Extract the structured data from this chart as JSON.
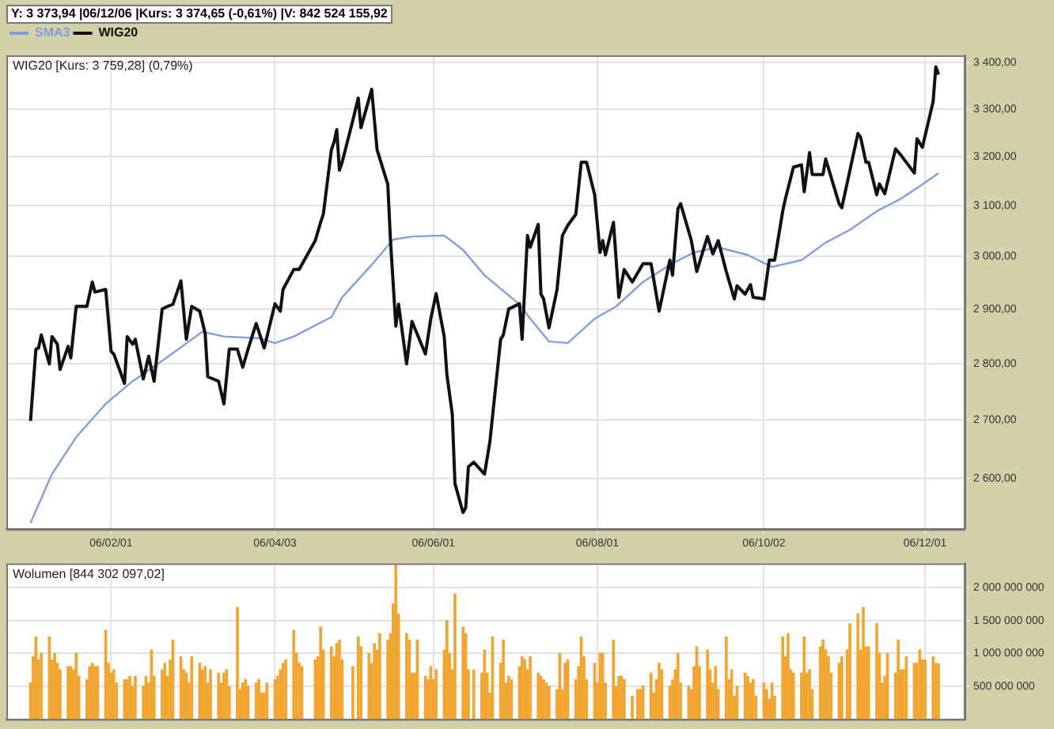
{
  "chart_data": [
    {
      "type": "line",
      "title": "WIG20 [Kurs: 3 759,28] (0,79%)",
      "annotations": [
        "Y: 3 373,94 |06/12/06 |Kurs: 3 374,65 (-0,61%) |V: 842 524 155,92"
      ],
      "legend": "top left",
      "grid": true,
      "log": "y",
      "xlim": [
        "2005-12-24",
        "2006-12-16"
      ],
      "xticks": [
        {
          "value": "2006-02-01",
          "label": "06/02/01"
        },
        {
          "value": "2006-04-03",
          "label": "06/04/03"
        },
        {
          "value": "2006-06-01",
          "label": "06/06/01"
        },
        {
          "value": "2006-08-01",
          "label": "06/08/01"
        },
        {
          "value": "2006-10-02",
          "label": "06/10/02"
        },
        {
          "value": "2006-12-01",
          "label": "06/12/01"
        }
      ],
      "ylim": [
        2516,
        3416
      ],
      "yticks": [
        {
          "value": 2600,
          "label": "2 600,00"
        },
        {
          "value": 2700,
          "label": "2 700,00"
        },
        {
          "value": 2800,
          "label": "2 800,00"
        },
        {
          "value": 2900,
          "label": "2 900,00"
        },
        {
          "value": 3000,
          "label": "3 000,00"
        },
        {
          "value": 3100,
          "label": "3 100,00"
        },
        {
          "value": 3200,
          "label": "3 200,00"
        },
        {
          "value": 3300,
          "label": "3 300,00"
        },
        {
          "value": 3400,
          "label": "3 400,00"
        }
      ],
      "series": [
        {
          "name": "SMA3",
          "color": "#7f9fdf",
          "x": [
            "2006-01-02",
            "2006-01-10",
            "2006-01-19",
            "2006-01-30",
            "2006-02-09",
            "2006-02-21",
            "2006-03-07",
            "2006-03-15",
            "2006-03-28",
            "2006-04-03",
            "2006-04-10",
            "2006-04-24",
            "2006-04-28",
            "2006-05-09",
            "2006-05-17",
            "2006-05-24",
            "2006-06-05",
            "2006-06-12",
            "2006-06-20",
            "2006-07-03",
            "2006-07-07",
            "2006-07-14",
            "2006-07-21",
            "2006-07-31",
            "2006-08-08",
            "2006-08-18",
            "2006-08-28",
            "2006-09-06",
            "2006-09-15",
            "2006-09-26",
            "2006-10-05",
            "2006-10-16",
            "2006-10-25",
            "2006-11-03",
            "2006-11-13",
            "2006-11-22",
            "2006-11-30",
            "2006-12-06"
          ],
          "values": [
            2526,
            2607,
            2670,
            2728,
            2768,
            2808,
            2858,
            2849,
            2846,
            2837,
            2849,
            2885,
            2922,
            2984,
            3033,
            3039,
            3041,
            3013,
            2964,
            2909,
            2882,
            2840,
            2837,
            2882,
            2905,
            2951,
            2984,
            3008,
            3018,
            3003,
            2980,
            2993,
            3027,
            3052,
            3089,
            3114,
            3143,
            3166
          ]
        },
        {
          "name": "WIG20",
          "color": "#111111",
          "x": [
            "2006-01-02",
            "2006-01-04",
            "2006-01-05",
            "2006-01-06",
            "2006-01-09",
            "2006-01-10",
            "2006-01-12",
            "2006-01-13",
            "2006-01-16",
            "2006-01-17",
            "2006-01-19",
            "2006-01-23",
            "2006-01-25",
            "2006-01-26",
            "2006-01-30",
            "2006-02-01",
            "2006-02-02",
            "2006-02-06",
            "2006-02-07",
            "2006-02-09",
            "2006-02-10",
            "2006-02-13",
            "2006-02-15",
            "2006-02-17",
            "2006-02-20",
            "2006-02-22",
            "2006-02-24",
            "2006-02-27",
            "2006-03-01",
            "2006-03-03",
            "2006-03-06",
            "2006-03-08",
            "2006-03-09",
            "2006-03-13",
            "2006-03-15",
            "2006-03-17",
            "2006-03-20",
            "2006-03-22",
            "2006-03-24",
            "2006-03-27",
            "2006-03-30",
            "2006-04-03",
            "2006-04-05",
            "2006-04-06",
            "2006-04-10",
            "2006-04-12",
            "2006-04-18",
            "2006-04-20",
            "2006-04-21",
            "2006-04-24",
            "2006-04-25",
            "2006-04-26",
            "2006-04-27",
            "2006-04-28",
            "2006-05-02",
            "2006-05-04",
            "2006-05-05",
            "2006-05-09",
            "2006-05-11",
            "2006-05-15",
            "2006-05-16",
            "2006-05-18",
            "2006-05-19",
            "2006-05-22",
            "2006-05-24",
            "2006-05-29",
            "2006-05-31",
            "2006-06-02",
            "2006-06-05",
            "2006-06-06",
            "2006-06-08",
            "2006-06-09",
            "2006-06-12",
            "2006-06-13",
            "2006-06-14",
            "2006-06-16",
            "2006-06-20",
            "2006-06-22",
            "2006-06-26",
            "2006-06-27",
            "2006-06-29",
            "2006-07-03",
            "2006-07-04",
            "2006-07-06",
            "2006-07-07",
            "2006-07-10",
            "2006-07-11",
            "2006-07-12",
            "2006-07-14",
            "2006-07-17",
            "2006-07-19",
            "2006-07-21",
            "2006-07-24",
            "2006-07-26",
            "2006-07-28",
            "2006-07-31",
            "2006-08-02",
            "2006-08-03",
            "2006-08-04",
            "2006-08-07",
            "2006-08-09",
            "2006-08-11",
            "2006-08-14",
            "2006-08-18",
            "2006-08-21",
            "2006-08-24",
            "2006-08-28",
            "2006-08-29",
            "2006-08-31",
            "2006-09-01",
            "2006-09-05",
            "2006-09-07",
            "2006-09-11",
            "2006-09-13",
            "2006-09-15",
            "2006-09-18",
            "2006-09-21",
            "2006-09-22",
            "2006-09-25",
            "2006-09-27",
            "2006-09-28",
            "2006-10-02",
            "2006-10-04",
            "2006-10-06",
            "2006-10-09",
            "2006-10-10",
            "2006-10-13",
            "2006-10-16",
            "2006-10-17",
            "2006-10-19",
            "2006-10-20",
            "2006-10-24",
            "2006-10-25",
            "2006-10-30",
            "2006-10-31",
            "2006-11-06",
            "2006-11-07",
            "2006-11-09",
            "2006-11-10",
            "2006-11-13",
            "2006-11-14",
            "2006-11-16",
            "2006-11-20",
            "2006-11-22",
            "2006-11-27",
            "2006-11-28",
            "2006-11-30",
            "2006-12-04",
            "2006-12-05",
            "2006-12-06"
          ],
          "values": [
            2698,
            2826,
            2828,
            2852,
            2799,
            2849,
            2835,
            2789,
            2831,
            2810,
            2905,
            2905,
            2951,
            2932,
            2937,
            2822,
            2817,
            2764,
            2849,
            2835,
            2844,
            2772,
            2813,
            2768,
            2900,
            2905,
            2909,
            2953,
            2844,
            2905,
            2896,
            2855,
            2776,
            2768,
            2728,
            2826,
            2826,
            2793,
            2826,
            2873,
            2828,
            2910,
            2896,
            2937,
            2975,
            2975,
            3031,
            3067,
            3083,
            3214,
            3230,
            3256,
            3172,
            3188,
            3276,
            3323,
            3260,
            3342,
            3214,
            3143,
            3031,
            2868,
            2909,
            2799,
            2877,
            2817,
            2882,
            2929,
            2849,
            2780,
            2710,
            2591,
            2543,
            2551,
            2619,
            2627,
            2607,
            2662,
            2844,
            2852,
            2900,
            2910,
            2844,
            3041,
            3018,
            3063,
            2928,
            2919,
            2865,
            2937,
            3041,
            3061,
            3083,
            3188,
            3188,
            3122,
            3008,
            3031,
            3003,
            3067,
            2922,
            2975,
            2951,
            2986,
            2986,
            2896,
            2993,
            2964,
            3094,
            3104,
            3031,
            2971,
            3039,
            3005,
            3031,
            2971,
            2919,
            2944,
            2928,
            2946,
            2922,
            2919,
            2993,
            2993,
            3089,
            3114,
            3178,
            3183,
            3128,
            3208,
            3163,
            3163,
            3195,
            3104,
            3096,
            3248,
            3240,
            3188,
            3188,
            3122,
            3144,
            3124,
            3216,
            3203,
            3166,
            3237,
            3219,
            3316,
            3391,
            3374
          ]
        }
      ]
    },
    {
      "type": "bar",
      "title": "Wolumen [844 302 097,02]",
      "color": "#f0a630",
      "grid": true,
      "tick_labels": "y",
      "xlim": [
        "2005-12-24",
        "2006-12-16"
      ],
      "xticks": [
        {
          "value": "2006-02-01",
          "label": null
        },
        {
          "value": "2006-04-03",
          "label": null
        },
        {
          "value": "2006-06-01",
          "label": null
        },
        {
          "value": "2006-08-01",
          "label": null
        },
        {
          "value": "2006-10-02",
          "label": null
        },
        {
          "value": "2006-12-01",
          "label": null
        }
      ],
      "ylim": [
        0,
        2370000000.0
      ],
      "yticks": [
        {
          "value": 500000000.0,
          "label": "500 000 000"
        },
        {
          "value": 1000000000.0,
          "label": "1 000 000 000"
        },
        {
          "value": 1500000000.0,
          "label": "1 500 000 000"
        },
        {
          "value": 2000000000.0,
          "label": "2 000 000 000"
        }
      ],
      "x": [
        "2006-01-02",
        "2006-01-03",
        "2006-01-04",
        "2006-01-05",
        "2006-01-06",
        "2006-01-09",
        "2006-01-10",
        "2006-01-11",
        "2006-01-12",
        "2006-01-13",
        "2006-01-16",
        "2006-01-17",
        "2006-01-18",
        "2006-01-19",
        "2006-01-20",
        "2006-01-23",
        "2006-01-24",
        "2006-01-25",
        "2006-01-26",
        "2006-01-27",
        "2006-01-30",
        "2006-01-31",
        "2006-02-01",
        "2006-02-02",
        "2006-02-03",
        "2006-02-06",
        "2006-02-07",
        "2006-02-08",
        "2006-02-09",
        "2006-02-10",
        "2006-02-13",
        "2006-02-14",
        "2006-02-15",
        "2006-02-16",
        "2006-02-17",
        "2006-02-20",
        "2006-02-21",
        "2006-02-22",
        "2006-02-23",
        "2006-02-24",
        "2006-02-27",
        "2006-02-28",
        "2006-03-01",
        "2006-03-02",
        "2006-03-03",
        "2006-03-06",
        "2006-03-07",
        "2006-03-08",
        "2006-03-09",
        "2006-03-10",
        "2006-03-13",
        "2006-03-14",
        "2006-03-15",
        "2006-03-16",
        "2006-03-17",
        "2006-03-20",
        "2006-03-21",
        "2006-03-22",
        "2006-03-23",
        "2006-03-24",
        "2006-03-27",
        "2006-03-28",
        "2006-03-29",
        "2006-03-30",
        "2006-03-31",
        "2006-04-03",
        "2006-04-04",
        "2006-04-05",
        "2006-04-06",
        "2006-04-07",
        "2006-04-10",
        "2006-04-11",
        "2006-04-12",
        "2006-04-13",
        "2006-04-18",
        "2006-04-19",
        "2006-04-20",
        "2006-04-21",
        "2006-04-24",
        "2006-04-25",
        "2006-04-26",
        "2006-04-27",
        "2006-04-28",
        "2006-05-02",
        "2006-05-04",
        "2006-05-05",
        "2006-05-08",
        "2006-05-09",
        "2006-05-10",
        "2006-05-11",
        "2006-05-12",
        "2006-05-15",
        "2006-05-16",
        "2006-05-17",
        "2006-05-18",
        "2006-05-19",
        "2006-05-22",
        "2006-05-23",
        "2006-05-24",
        "2006-05-25",
        "2006-05-26",
        "2006-05-29",
        "2006-05-30",
        "2006-05-31",
        "2006-06-01",
        "2006-06-02",
        "2006-06-05",
        "2006-06-06",
        "2006-06-07",
        "2006-06-08",
        "2006-06-09",
        "2006-06-12",
        "2006-06-13",
        "2006-06-14",
        "2006-06-16",
        "2006-06-19",
        "2006-06-20",
        "2006-06-21",
        "2006-06-22",
        "2006-06-23",
        "2006-06-26",
        "2006-06-27",
        "2006-06-28",
        "2006-06-29",
        "2006-06-30",
        "2006-07-03",
        "2006-07-04",
        "2006-07-05",
        "2006-07-06",
        "2006-07-07",
        "2006-07-10",
        "2006-07-11",
        "2006-07-12",
        "2006-07-13",
        "2006-07-14",
        "2006-07-17",
        "2006-07-18",
        "2006-07-19",
        "2006-07-20",
        "2006-07-21",
        "2006-07-24",
        "2006-07-25",
        "2006-07-26",
        "2006-07-27",
        "2006-07-28",
        "2006-07-31",
        "2006-08-01",
        "2006-08-02",
        "2006-08-03",
        "2006-08-04",
        "2006-08-07",
        "2006-08-08",
        "2006-08-09",
        "2006-08-10",
        "2006-08-11",
        "2006-08-14",
        "2006-08-16",
        "2006-08-17",
        "2006-08-18",
        "2006-08-21",
        "2006-08-22",
        "2006-08-23",
        "2006-08-24",
        "2006-08-25",
        "2006-08-28",
        "2006-08-29",
        "2006-08-30",
        "2006-08-31",
        "2006-09-01",
        "2006-09-04",
        "2006-09-05",
        "2006-09-06",
        "2006-09-07",
        "2006-09-08",
        "2006-09-11",
        "2006-09-12",
        "2006-09-13",
        "2006-09-14",
        "2006-09-15",
        "2006-09-18",
        "2006-09-19",
        "2006-09-20",
        "2006-09-21",
        "2006-09-22",
        "2006-09-25",
        "2006-09-26",
        "2006-09-27",
        "2006-09-28",
        "2006-09-29",
        "2006-10-02",
        "2006-10-03",
        "2006-10-04",
        "2006-10-05",
        "2006-10-06",
        "2006-10-09",
        "2006-10-10",
        "2006-10-11",
        "2006-10-12",
        "2006-10-13",
        "2006-10-16",
        "2006-10-17",
        "2006-10-18",
        "2006-10-19",
        "2006-10-20",
        "2006-10-23",
        "2006-10-24",
        "2006-10-25",
        "2006-10-26",
        "2006-10-27",
        "2006-10-30",
        "2006-10-31",
        "2006-11-02",
        "2006-11-03",
        "2006-11-06",
        "2006-11-07",
        "2006-11-08",
        "2006-11-09",
        "2006-11-10",
        "2006-11-13",
        "2006-11-14",
        "2006-11-15",
        "2006-11-16",
        "2006-11-17",
        "2006-11-20",
        "2006-11-21",
        "2006-11-22",
        "2006-11-23",
        "2006-11-24",
        "2006-11-27",
        "2006-11-28",
        "2006-11-29",
        "2006-11-30",
        "2006-12-01",
        "2006-12-04",
        "2006-12-05",
        "2006-12-06"
      ],
      "values": [
        550000000.0,
        950000000.0,
        1250000000.0,
        900000000.0,
        1000000000.0,
        1250000000.0,
        900000000.0,
        1000000000.0,
        850000000.0,
        750000000.0,
        800000000.0,
        800000000.0,
        750000000.0,
        1000000000.0,
        650000000.0,
        600000000.0,
        800000000.0,
        850000000.0,
        800000000.0,
        800000000.0,
        1350000000.0,
        850000000.0,
        700000000.0,
        750000000.0,
        550000000.0,
        600000000.0,
        600000000.0,
        650000000.0,
        500000000.0,
        650000000.0,
        500000000.0,
        650000000.0,
        550000000.0,
        1050000000.0,
        650000000.0,
        750000000.0,
        850000000.0,
        650000000.0,
        900000000.0,
        1200000000.0,
        950000000.0,
        750000000.0,
        700000000.0,
        550000000.0,
        950000000.0,
        850000000.0,
        750000000.0,
        800000000.0,
        550000000.0,
        750000000.0,
        700000000.0,
        550000000.0,
        700000000.0,
        750000000.0,
        500000000.0,
        1700000000.0,
        450000000.0,
        550000000.0,
        600000000.0,
        500000000.0,
        550000000.0,
        600000000.0,
        400000000.0,
        400000000.0,
        550000000.0,
        600000000.0,
        650000000.0,
        750000000.0,
        850000000.0,
        900000000.0,
        1350000000.0,
        1000000000.0,
        850000000.0,
        800000000.0,
        900000000.0,
        950000000.0,
        1400000000.0,
        1050000000.0,
        1100000000.0,
        950000000.0,
        1150000000.0,
        1200000000.0,
        900000000.0,
        800000000.0,
        1250000000.0,
        1100000000.0,
        1000000000.0,
        850000000.0,
        1150000000.0,
        1050000000.0,
        1300000000.0,
        1200000000.0,
        1300000000.0,
        1750000000.0,
        2350000000.0,
        1600000000.0,
        1300000000.0,
        1200000000.0,
        700000000.0,
        700000000.0,
        1200000000.0,
        650000000.0,
        600000000.0,
        800000000.0,
        600000000.0,
        750000000.0,
        1050000000.0,
        1500000000.0,
        1000000000.0,
        750000000.0,
        1900000000.0,
        1400000000.0,
        1300000000.0,
        750000000.0,
        750000000.0,
        700000000.0,
        1050000000.0,
        700000000.0,
        400000000.0,
        1250000000.0,
        850000000.0,
        1200000000.0,
        550000000.0,
        650000000.0,
        600000000.0,
        800000000.0,
        950000000.0,
        900000000.0,
        750000000.0,
        950000000.0,
        700000000.0,
        650000000.0,
        600000000.0,
        550000000.0,
        500000000.0,
        450000000.0,
        1000000000.0,
        450000000.0,
        850000000.0,
        900000000.0,
        600000000.0,
        800000000.0,
        1250000000.0,
        950000000.0,
        600000000.0,
        850000000.0,
        550000000.0,
        1000000000.0,
        1000000000.0,
        550000000.0,
        1200000000.0,
        500000000.0,
        650000000.0,
        650000000.0,
        600000000.0,
        350000000.0,
        450000000.0,
        450000000.0,
        500000000.0,
        700000000.0,
        400000000.0,
        600000000.0,
        850000000.0,
        750000000.0,
        500000000.0,
        600000000.0,
        750000000.0,
        1000000000.0,
        550000000.0,
        500000000.0,
        450000000.0,
        800000000.0,
        1100000000.0,
        800000000.0,
        1050000000.0,
        750000000.0,
        550000000.0,
        800000000.0,
        450000000.0,
        1250000000.0,
        600000000.0,
        750000000.0,
        350000000.0,
        500000000.0,
        700000000.0,
        650000000.0,
        550000000.0,
        600000000.0,
        350000000.0,
        550000000.0,
        450000000.0,
        300000000.0,
        550000000.0,
        350000000.0,
        1250000000.0,
        950000000.0,
        1300000000.0,
        750000000.0,
        700000000.0,
        700000000.0,
        1250000000.0,
        700000000.0,
        750000000.0,
        450000000.0,
        1100000000.0,
        1200000000.0,
        1050000000.0,
        950000000.0,
        700000000.0,
        850000000.0,
        950000000.0,
        1050000000.0,
        1450000000.0,
        1600000000.0,
        1050000000.0,
        1700000000.0,
        1100000000.0,
        1100000000.0,
        1450000000.0,
        1000000000.0,
        550000000.0,
        650000000.0,
        1000000000.0,
        700000000.0,
        1200000000.0,
        750000000.0,
        750000000.0,
        950000000.0,
        850000000.0,
        850000000.0,
        1050000000.0,
        900000000.0,
        900000000.0,
        950000000.0,
        850000000.0,
        840000000.0
      ]
    }
  ]
}
